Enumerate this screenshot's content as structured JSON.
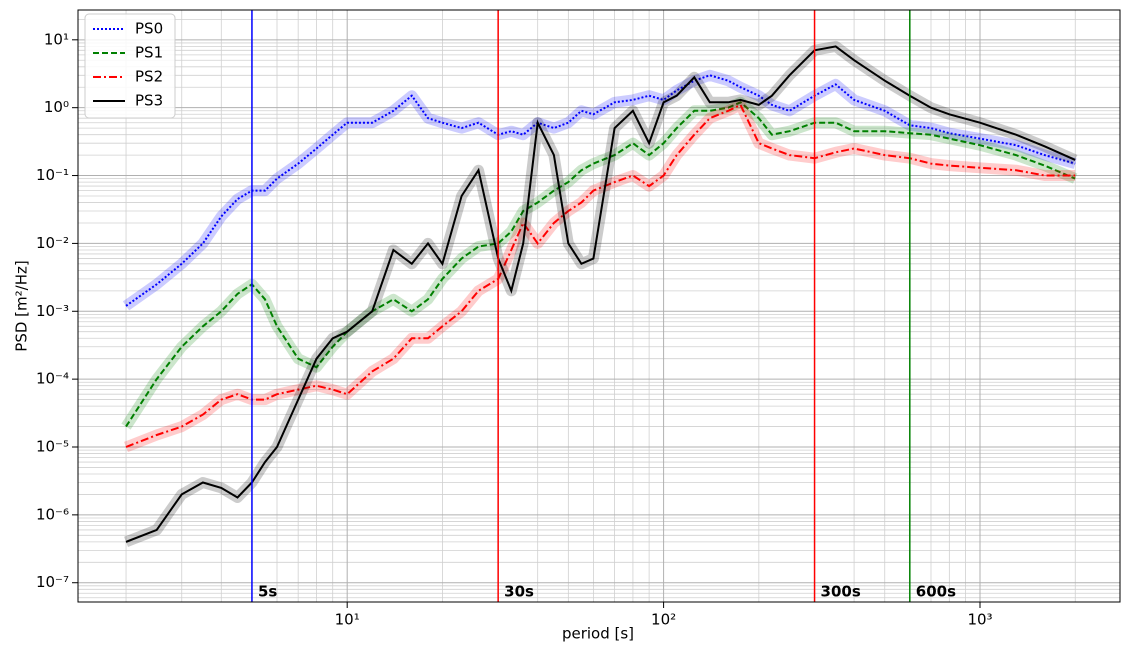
{
  "chart_data": {
    "type": "line",
    "xlabel": "period [s]",
    "ylabel": "PSD [m²/Hz]",
    "xscale": "log",
    "yscale": "log",
    "grid": true,
    "legend": "upper left",
    "xlim": [
      1.41,
      2770
    ],
    "ylim": [
      5.2e-08,
      27.5
    ],
    "xticks": [
      {
        "value": 10,
        "label": "10¹"
      },
      {
        "value": 100,
        "label": "10²"
      },
      {
        "value": 1000,
        "label": "10³"
      }
    ],
    "yticks": [
      {
        "value": 1e-07,
        "label": "10⁻⁷"
      },
      {
        "value": 1e-06,
        "label": "10⁻⁶"
      },
      {
        "value": 1e-05,
        "label": "10⁻⁵"
      },
      {
        "value": 0.0001,
        "label": "10⁻⁴"
      },
      {
        "value": 0.001,
        "label": "10⁻³"
      },
      {
        "value": 0.01,
        "label": "10⁻²"
      },
      {
        "value": 0.1,
        "label": "10⁻¹"
      },
      {
        "value": 1,
        "label": "10⁰"
      },
      {
        "value": 10,
        "label": "10¹"
      }
    ],
    "xminorticks": [
      2,
      3,
      4,
      5,
      6,
      7,
      8,
      9,
      20,
      30,
      40,
      50,
      60,
      70,
      80,
      90,
      200,
      300,
      400,
      500,
      600,
      700,
      800,
      900,
      2000
    ],
    "yminorticks": [
      6e-08,
      7e-08,
      8e-08,
      9e-08,
      2e-07,
      3e-07,
      4e-07,
      5e-07,
      6e-07,
      7e-07,
      8e-07,
      9e-07,
      2e-06,
      3e-06,
      4e-06,
      5e-06,
      6e-06,
      7e-06,
      8e-06,
      9e-06,
      2e-05,
      3e-05,
      4e-05,
      5e-05,
      6e-05,
      7e-05,
      8e-05,
      9e-05,
      0.0002,
      0.0003,
      0.0004,
      0.0005,
      0.0006,
      0.0007,
      0.0008,
      0.0009,
      0.002,
      0.003,
      0.004,
      0.005,
      0.006,
      0.007,
      0.008,
      0.009,
      0.02,
      0.03,
      0.04,
      0.05,
      0.06,
      0.07,
      0.08,
      0.09,
      0.2,
      0.3,
      0.4,
      0.5,
      0.6,
      0.7,
      0.8,
      0.9,
      2,
      3,
      4,
      5,
      6,
      7,
      8,
      9,
      20
    ],
    "x": [
      2,
      2.5,
      3,
      3.5,
      4,
      4.5,
      5,
      5.5,
      6,
      7,
      8,
      9,
      10,
      12,
      14,
      16,
      18,
      20,
      23,
      26,
      30,
      33,
      36,
      40,
      45,
      50,
      55,
      60,
      70,
      80,
      90,
      100,
      110,
      125,
      140,
      160,
      175,
      200,
      220,
      250,
      300,
      350,
      400,
      500,
      600,
      700,
      800,
      1000,
      1300,
      1600,
      2000
    ],
    "series": [
      {
        "name": "PS0",
        "color": "#0000ff",
        "linestyle": "dotted",
        "values": [
          0.0012,
          0.0025,
          0.005,
          0.01,
          0.025,
          0.045,
          0.06,
          0.06,
          0.09,
          0.15,
          0.25,
          0.4,
          0.6,
          0.6,
          0.9,
          1.5,
          0.7,
          0.6,
          0.5,
          0.6,
          0.4,
          0.45,
          0.4,
          0.6,
          0.5,
          0.6,
          0.9,
          0.8,
          1.2,
          1.3,
          1.5,
          1.3,
          1.8,
          2.5,
          3,
          2.5,
          2,
          1.5,
          1.1,
          0.9,
          1.5,
          2.2,
          1.3,
          0.9,
          0.55,
          0.5,
          0.42,
          0.35,
          0.28,
          0.2,
          0.15
        ]
      },
      {
        "name": "PS1",
        "color": "#008000",
        "linestyle": "dashed",
        "values": [
          2e-05,
          0.0001,
          0.0003,
          0.0006,
          0.001,
          0.0018,
          0.0025,
          0.0015,
          0.0006,
          0.0002,
          0.00015,
          0.0003,
          0.0005,
          0.001,
          0.0015,
          0.001,
          0.0015,
          0.003,
          0.006,
          0.009,
          0.01,
          0.015,
          0.03,
          0.04,
          0.06,
          0.08,
          0.12,
          0.15,
          0.2,
          0.3,
          0.2,
          0.3,
          0.5,
          0.9,
          0.9,
          1,
          1.2,
          0.7,
          0.4,
          0.45,
          0.6,
          0.6,
          0.45,
          0.45,
          0.42,
          0.4,
          0.35,
          0.28,
          0.2,
          0.14,
          0.09
        ]
      },
      {
        "name": "PS2",
        "color": "#ff0000",
        "linestyle": "dashdot",
        "values": [
          1e-05,
          1.5e-05,
          2e-05,
          3e-05,
          5e-05,
          6e-05,
          5e-05,
          5e-05,
          6e-05,
          7e-05,
          8e-05,
          7e-05,
          6e-05,
          0.00013,
          0.0002,
          0.0004,
          0.0004,
          0.0006,
          0.001,
          0.002,
          0.003,
          0.008,
          0.02,
          0.01,
          0.02,
          0.03,
          0.04,
          0.06,
          0.08,
          0.1,
          0.07,
          0.1,
          0.2,
          0.4,
          0.7,
          0.9,
          1.1,
          0.3,
          0.25,
          0.2,
          0.18,
          0.22,
          0.25,
          0.2,
          0.18,
          0.15,
          0.14,
          0.13,
          0.12,
          0.1,
          0.1
        ]
      },
      {
        "name": "PS3",
        "color": "#000000",
        "linestyle": "solid",
        "values": [
          4e-07,
          6e-07,
          2e-06,
          3e-06,
          2.5e-06,
          1.8e-06,
          3e-06,
          6e-06,
          1e-05,
          5e-05,
          0.0002,
          0.0004,
          0.0005,
          0.001,
          0.008,
          0.005,
          0.01,
          0.005,
          0.05,
          0.12,
          0.006,
          0.002,
          0.01,
          0.6,
          0.2,
          0.01,
          0.005,
          0.006,
          0.5,
          0.9,
          0.3,
          1.2,
          1.5,
          2.8,
          1.2,
          1.2,
          1.3,
          1.1,
          1.5,
          3,
          7,
          8,
          5,
          2.5,
          1.5,
          1,
          0.8,
          0.6,
          0.4,
          0.27,
          0.17
        ]
      }
    ],
    "vlines": [
      {
        "x": 5,
        "label": "5s",
        "color": "#0000ff"
      },
      {
        "x": 30,
        "label": "30s",
        "color": "#ff0000"
      },
      {
        "x": 300,
        "label": "300s",
        "color": "#ff0000"
      },
      {
        "x": 600,
        "label": "600s",
        "color": "#008000"
      }
    ]
  }
}
